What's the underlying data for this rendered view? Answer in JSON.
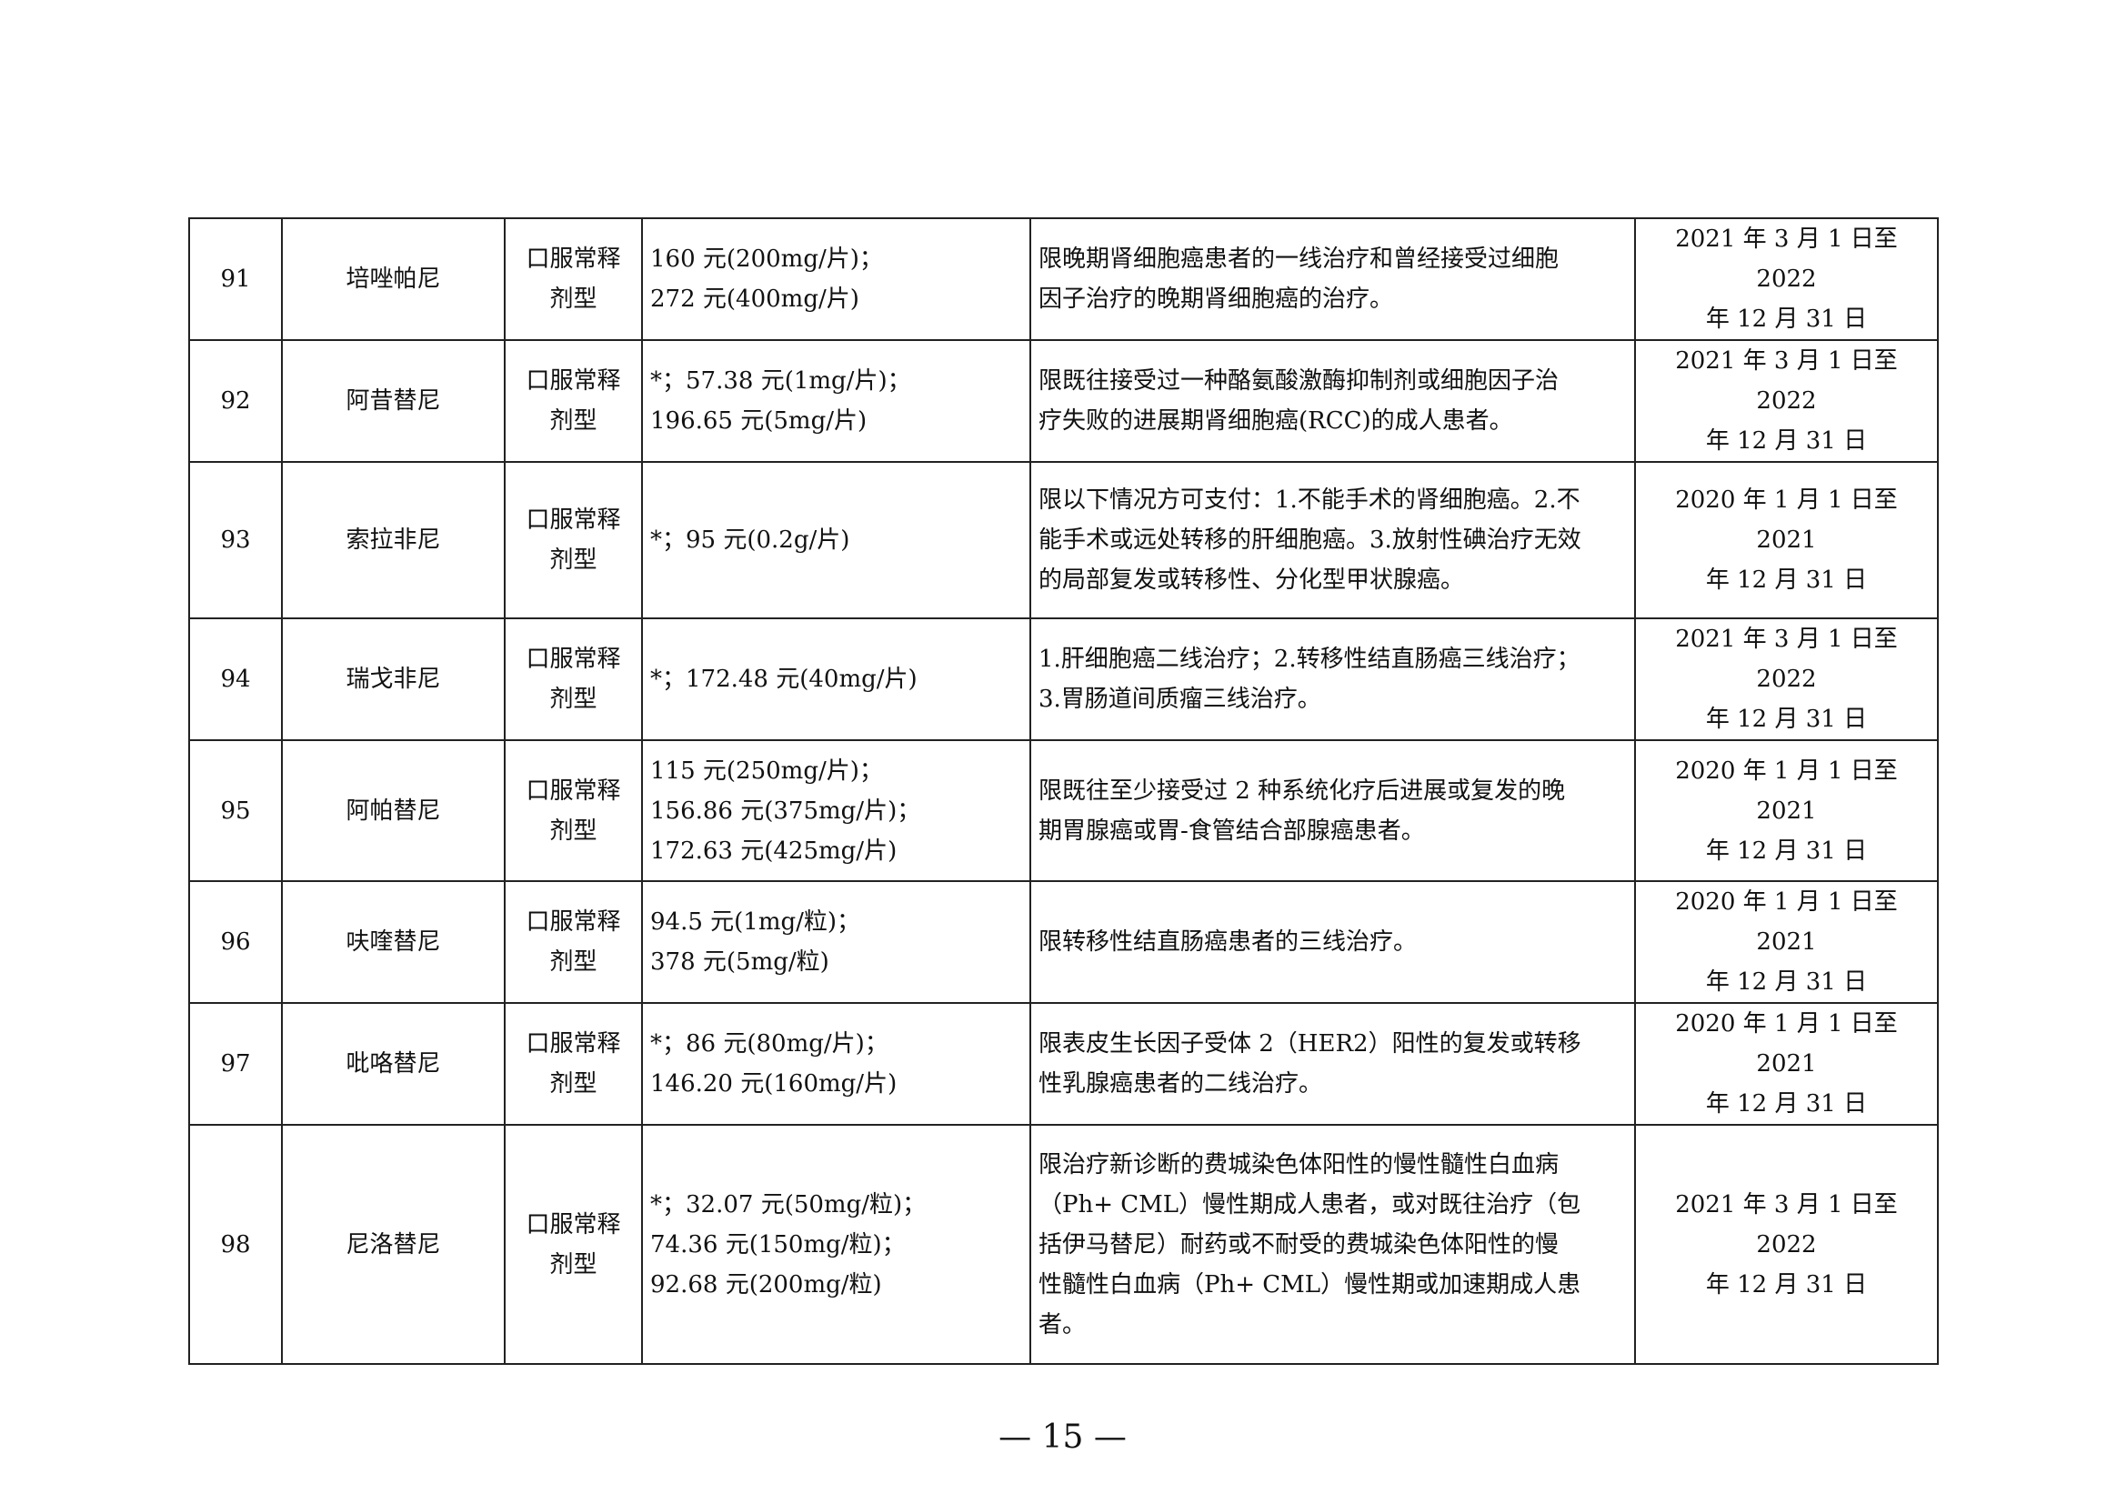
{
  "rows": [
    {
      "no": "91",
      "name": "培唑帕尼",
      "form": "口服常释\n剂型",
      "price": "160 元(200mg/片)；\n272 元(400mg/片)",
      "scope": "限晚期肾细胞癌患者的一线治疗和曾经接受过细胞\n因子治疗的晚期肾细胞癌的治疗。",
      "period": "2021 年 3 月 1 日至 2022\n年 12 月 31 日"
    },
    {
      "no": "92",
      "name": "阿昔替尼",
      "form": "口服常释\n剂型",
      "price": "*；57.38 元(1mg/片)；\n196.65 元(5mg/片)",
      "scope": "限既往接受过一种酪氨酸激酶抑制剂或细胞因子治\n疗失败的进展期肾细胞癌(RCC)的成人患者。",
      "period": "2021 年 3 月 1 日至 2022\n年 12 月 31 日"
    },
    {
      "no": "93",
      "name": "索拉非尼",
      "form": "口服常释\n剂型",
      "price": "*；95 元(0.2g/片)",
      "scope": "限以下情况方可支付：1.不能手术的肾细胞癌。2.不\n能手术或远处转移的肝细胞癌。3.放射性碘治疗无效\n的局部复发或转移性、分化型甲状腺癌。",
      "period": "2020 年 1 月 1 日至 2021\n年 12 月 31 日"
    },
    {
      "no": "94",
      "name": "瑞戈非尼",
      "form": "口服常释\n剂型",
      "price": "*；172.48 元(40mg/片)",
      "scope": "1.肝细胞癌二线治疗；2.转移性结直肠癌三线治疗；\n3.胃肠道间质瘤三线治疗。",
      "period": "2021 年 3 月 1 日至 2022\n年 12 月 31 日"
    },
    {
      "no": "95",
      "name": "阿帕替尼",
      "form": "口服常释\n剂型",
      "price": "115 元(250mg/片)；\n156.86 元(375mg/片)；\n172.63 元(425mg/片)",
      "scope": "限既往至少接受过 2 种系统化疗后进展或复发的晚\n期胃腺癌或胃-食管结合部腺癌患者。",
      "period": "2020 年 1 月 1 日至 2021\n年 12 月 31 日"
    },
    {
      "no": "96",
      "name": "呋喹替尼",
      "form": "口服常释\n剂型",
      "price": "94.5 元(1mg/粒)；\n378 元(5mg/粒)",
      "scope": "限转移性结直肠癌患者的三线治疗。",
      "period": "2020 年 1 月 1 日至 2021\n年 12 月 31 日"
    },
    {
      "no": "97",
      "name": "吡咯替尼",
      "form": "口服常释\n剂型",
      "price": "*；86 元(80mg/片)；\n146.20 元(160mg/片)",
      "scope": "限表皮生长因子受体 2（HER2）阳性的复发或转移\n性乳腺癌患者的二线治疗。",
      "period": "2020 年 1 月 1 日至 2021\n年 12 月 31 日"
    },
    {
      "no": "98",
      "name": "尼洛替尼",
      "form": "口服常释\n剂型",
      "price": "*；32.07 元(50mg/粒)；\n74.36 元(150mg/粒)；\n92.68 元(200mg/粒)",
      "scope": "限治疗新诊断的费城染色体阳性的慢性髓性白血病\n（Ph+ CML）慢性期成人患者，或对既往治疗（包\n括伊马替尼）耐药或不耐受的费城染色体阳性的慢\n性髓性白血病（Ph+ CML）慢性期或加速期成人患\n者。",
      "period": "2021 年 3 月 1 日至 2022\n年 12 月 31 日"
    }
  ],
  "page_number": "— 15 —"
}
